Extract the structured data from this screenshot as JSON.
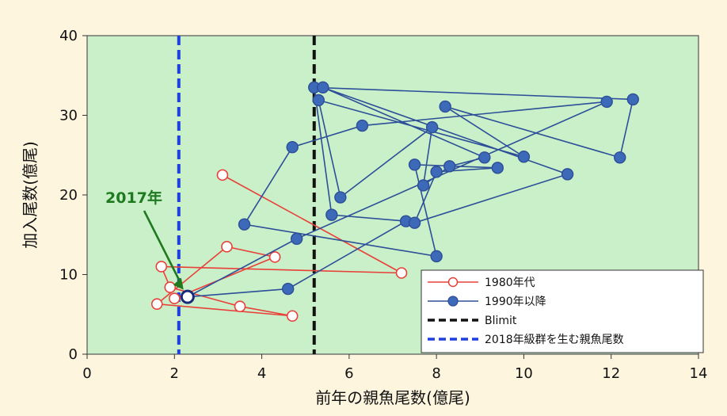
{
  "chart_data": {
    "type": "scatter",
    "xlabel": "前年の親魚尾数(億尾)",
    "ylabel": "加入尾数(億尾)",
    "xlim": [
      0,
      14
    ],
    "ylim": [
      0,
      40
    ],
    "xticks": [
      "0",
      "2",
      "4",
      "6",
      "8",
      "10",
      "12",
      "14"
    ],
    "yticks": [
      "0",
      "10",
      "20",
      "30",
      "40"
    ],
    "plot_background": "#c9f0c9",
    "legend_position": "bottom-right",
    "series": [
      {
        "name": "1980年代",
        "color": "#e8413a",
        "marker": "open-circle",
        "connected": true,
        "points": [
          [
            3.1,
            22.5
          ],
          [
            7.2,
            10.2
          ],
          [
            1.7,
            11.0
          ],
          [
            1.9,
            8.4
          ],
          [
            3.5,
            6.0
          ],
          [
            4.7,
            4.8
          ],
          [
            1.6,
            6.3
          ],
          [
            3.2,
            13.5
          ],
          [
            4.3,
            12.2
          ],
          [
            2.0,
            7.0
          ]
        ]
      },
      {
        "name": "1990年以降",
        "color": "#2d4e98",
        "marker": "filled-circle",
        "connected": true,
        "points": [
          [
            2.3,
            7.2
          ],
          [
            4.6,
            8.2
          ],
          [
            7.3,
            16.7
          ],
          [
            5.6,
            17.5
          ],
          [
            5.2,
            33.5
          ],
          [
            12.5,
            32.0
          ],
          [
            12.2,
            24.7
          ],
          [
            8.2,
            31.1
          ],
          [
            10.0,
            24.8
          ],
          [
            5.3,
            31.9
          ],
          [
            5.8,
            19.7
          ],
          [
            7.9,
            28.5
          ],
          [
            7.7,
            21.2
          ],
          [
            8.3,
            23.6
          ],
          [
            9.1,
            24.7
          ],
          [
            5.4,
            33.5
          ],
          [
            11.0,
            22.6
          ],
          [
            7.5,
            16.5
          ],
          [
            8.0,
            22.9
          ],
          [
            9.4,
            23.4
          ],
          [
            7.5,
            23.8
          ],
          [
            8.0,
            12.3
          ],
          [
            3.6,
            16.3
          ],
          [
            4.7,
            26.0
          ],
          [
            6.3,
            28.7
          ],
          [
            11.9,
            31.7
          ],
          [
            4.8,
            14.5
          ],
          [
            2.3,
            7.2
          ]
        ]
      },
      {
        "name": "Blimit",
        "color": "#111111",
        "style": "dashed-vertical",
        "x": 5.2
      },
      {
        "name": "2018年級群を生む親魚尾数",
        "color": "#1f3fe0",
        "style": "dashed-vertical",
        "x": 2.1
      }
    ],
    "highlight": {
      "label": "2017年",
      "label_color": "#1f7a1f",
      "x": 2.3,
      "y": 7.2
    }
  }
}
